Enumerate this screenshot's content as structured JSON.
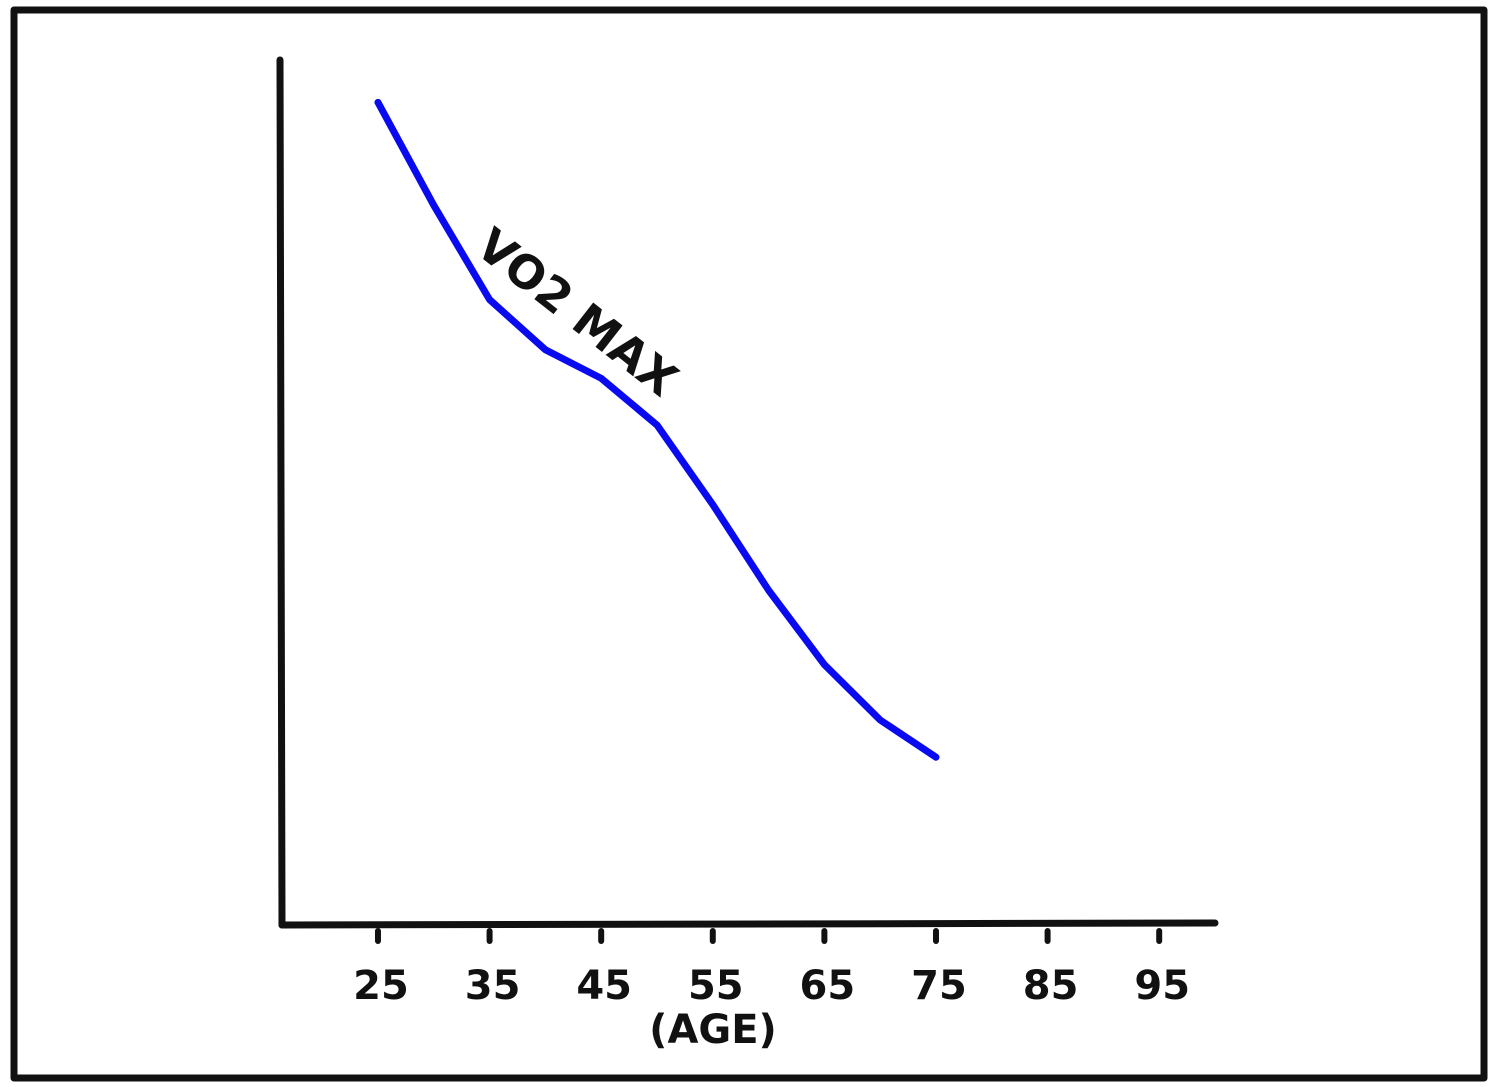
{
  "chart_data": {
    "type": "line",
    "xlabel": "(AGE)",
    "x": [
      25,
      30,
      35,
      40,
      45,
      50,
      55,
      60,
      65,
      70,
      75
    ],
    "series": [
      {
        "name": "VO2 MAX",
        "color": "#0a0af0",
        "values": [
          95.1,
          83.2,
          72.3,
          66.5,
          63.2,
          57.8,
          48.6,
          38.7,
          30.1,
          23.7,
          19.4
        ]
      }
    ],
    "xlim": [
      16.4,
      100
    ],
    "xticks": [
      25,
      35,
      45,
      55,
      65,
      75,
      85,
      95
    ],
    "ylim": [
      0,
      100
    ]
  }
}
